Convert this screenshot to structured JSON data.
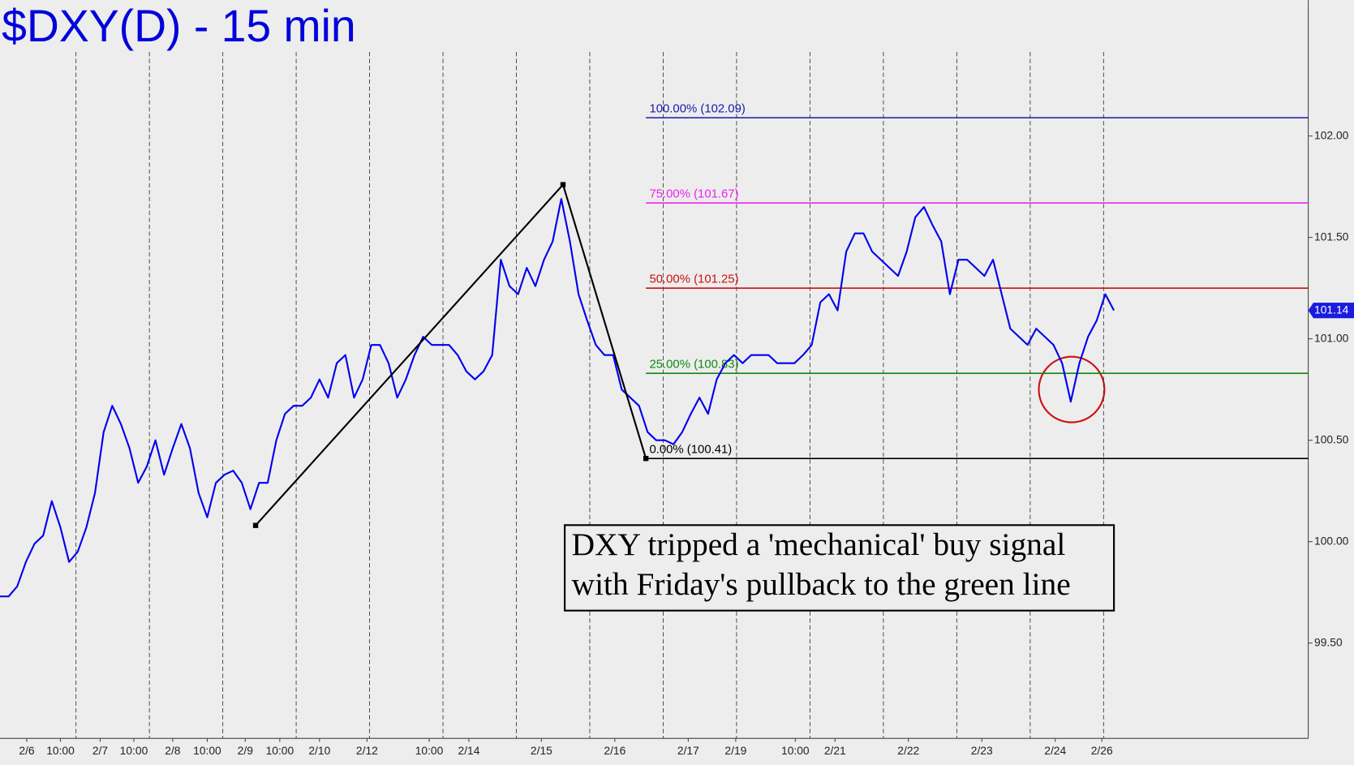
{
  "chart_data": {
    "type": "line",
    "title": "$DXY(D) - 15 min",
    "color": "#0000ee",
    "values": [
      99.73,
      99.73,
      99.78,
      99.9,
      99.99,
      100.03,
      100.2,
      100.07,
      99.9,
      99.95,
      100.07,
      100.24,
      100.54,
      100.67,
      100.58,
      100.46,
      100.29,
      100.37,
      100.5,
      100.33,
      100.46,
      100.58,
      100.46,
      100.24,
      100.12,
      100.29,
      100.33,
      100.35,
      100.29,
      100.16,
      100.29,
      100.29,
      100.5,
      100.63,
      100.67,
      100.67,
      100.71,
      100.8,
      100.71,
      100.88,
      100.92,
      100.71,
      100.8,
      100.97,
      100.97,
      100.88,
      100.71,
      100.8,
      100.92,
      101.01,
      100.97,
      100.97,
      100.97,
      100.92,
      100.84,
      100.8,
      100.84,
      100.92,
      101.39,
      101.26,
      101.22,
      101.35,
      101.26,
      101.39,
      101.48,
      101.69,
      101.48,
      101.22,
      101.09,
      100.97,
      100.92,
      100.92,
      100.75,
      100.71,
      100.67,
      100.54,
      100.5,
      100.5,
      100.48,
      100.54,
      100.63,
      100.71,
      100.63,
      100.8,
      100.88,
      100.92,
      100.88,
      100.92,
      100.92,
      100.92,
      100.88,
      100.88,
      100.88,
      100.92,
      100.97,
      101.18,
      101.22,
      101.14,
      101.43,
      101.52,
      101.52,
      101.43,
      101.39,
      101.35,
      101.31,
      101.43,
      101.6,
      101.65,
      101.56,
      101.48,
      101.22,
      101.39,
      101.39,
      101.35,
      101.31,
      101.39,
      101.22,
      101.05,
      101.01,
      100.97,
      101.05,
      101.01,
      100.97,
      100.88,
      100.69,
      100.88,
      101.01,
      101.09,
      101.22,
      101.14
    ],
    "xlim": [
      0,
      151.5
    ],
    "ylim": [
      99.03,
      102.67
    ],
    "xticks": [
      {
        "value": 3.1,
        "label": "2/6"
      },
      {
        "value": 7.0,
        "label": "10:00"
      },
      {
        "value": 11.6,
        "label": "2/7"
      },
      {
        "value": 15.5,
        "label": "10:00"
      },
      {
        "value": 20.0,
        "label": "2/8"
      },
      {
        "value": 24.0,
        "label": "10:00"
      },
      {
        "value": 28.4,
        "label": "2/9"
      },
      {
        "value": 32.4,
        "label": "10:00"
      },
      {
        "value": 37.0,
        "label": "2/10"
      },
      {
        "value": 42.5,
        "label": "2/12"
      },
      {
        "value": 49.7,
        "label": "10:00"
      },
      {
        "value": 54.3,
        "label": "2/14"
      },
      {
        "value": 62.7,
        "label": "2/15"
      },
      {
        "value": 71.2,
        "label": "2/16"
      },
      {
        "value": 79.7,
        "label": "2/17"
      },
      {
        "value": 85.2,
        "label": "2/19"
      },
      {
        "value": 92.1,
        "label": "10:00"
      },
      {
        "value": 96.7,
        "label": "2/21"
      },
      {
        "value": 105.2,
        "label": "2/22"
      },
      {
        "value": 113.7,
        "label": "2/23"
      },
      {
        "value": 122.2,
        "label": "2/24"
      },
      {
        "value": 127.6,
        "label": "2/26"
      }
    ],
    "xgrid": [
      8.8,
      17.3,
      25.8,
      34.3,
      42.8,
      51.3,
      59.8,
      68.3,
      76.8,
      85.3,
      93.8,
      102.3,
      110.8,
      119.3,
      127.8
    ],
    "yticks": [
      {
        "value": 99.5,
        "label": "99.50"
      },
      {
        "value": 100,
        "label": "100.00"
      },
      {
        "value": 100.5,
        "label": "100.50"
      },
      {
        "value": 101,
        "label": "101.00"
      },
      {
        "value": 101.5,
        "label": "101.50"
      },
      {
        "value": 102,
        "label": "102.00"
      }
    ],
    "levels_start": 74.8,
    "levels": [
      {
        "label": "100.00% (102.09)",
        "value": 102.09,
        "color": "#1a1aaa"
      },
      {
        "label": "75.00% (101.67)",
        "value": 101.67,
        "color": "#ee22ee"
      },
      {
        "label": "50.00% (101.25)",
        "value": 101.25,
        "color": "#cc1111"
      },
      {
        "label": "25.00% (100.83)",
        "value": 100.83,
        "color": "#118811"
      },
      {
        "label": "0.00% (100.41)",
        "value": 100.41,
        "color": "#000000"
      }
    ],
    "pattern": [
      {
        "x": 29.6,
        "y": 100.08
      },
      {
        "x": 65.2,
        "y": 101.76
      },
      {
        "x": 74.8,
        "y": 100.41
      }
    ],
    "last_price": 101.14,
    "annotation": [
      "DXY tripped a 'mechanical' buy signal",
      "with Friday's pullback to the green line"
    ]
  }
}
